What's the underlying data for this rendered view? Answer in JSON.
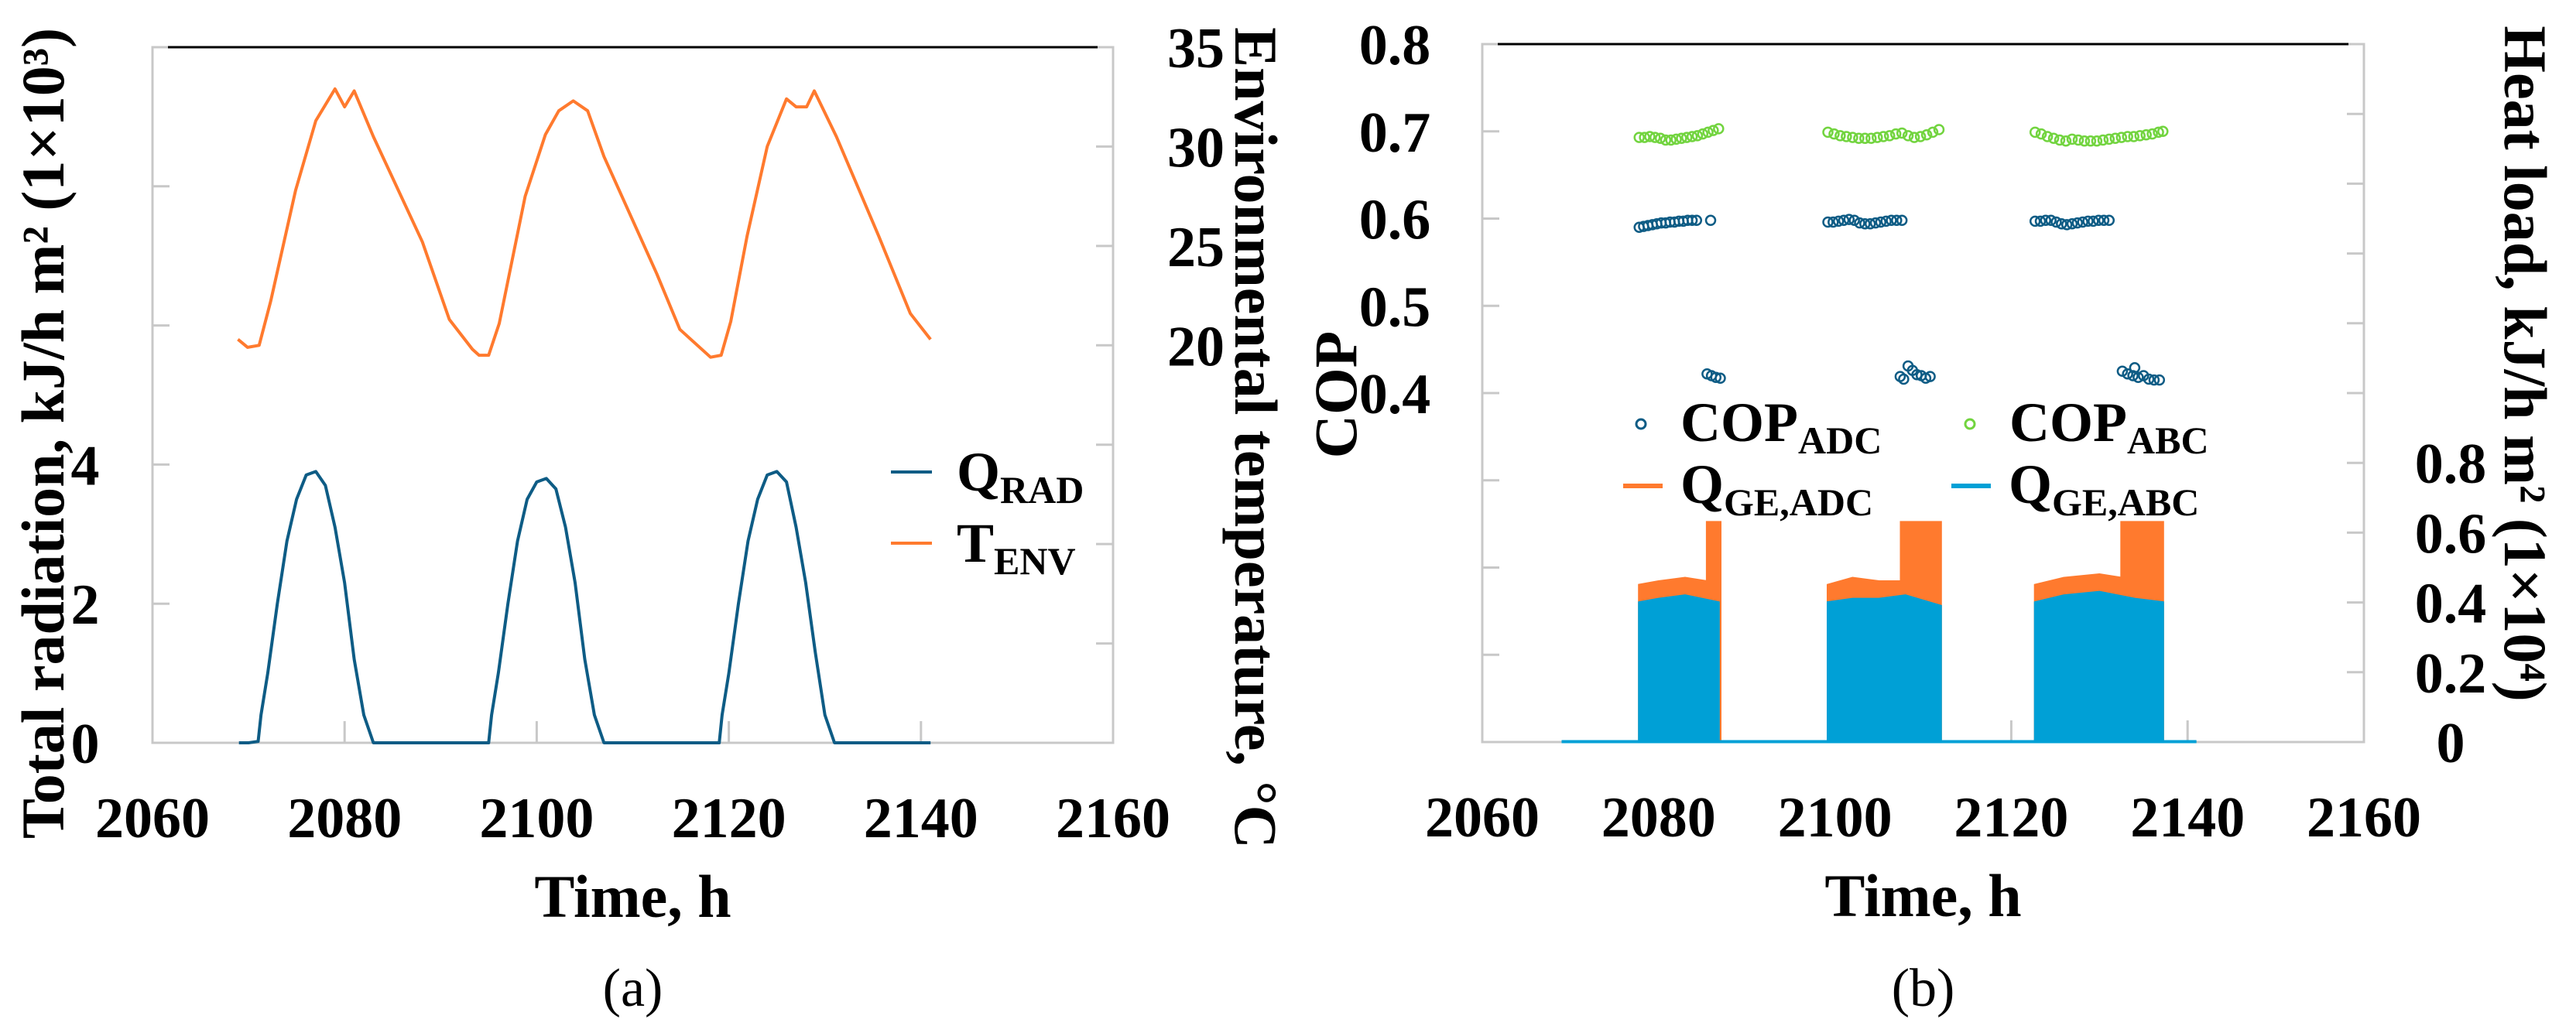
{
  "chart_data": [
    {
      "type": "line",
      "panel_label": "(a)",
      "xlabel": "Time, h",
      "ylabel": "Total radiation, kJ/h m² (1×10³)",
      "y2label": "Environmental temperature, °C",
      "xlim": [
        2060,
        2160
      ],
      "xticks": [
        "2060",
        "2080",
        "2100",
        "2120",
        "2140",
        "2160"
      ],
      "ylim": [
        0,
        10
      ],
      "yticks_labeled": [
        "0",
        "2",
        "4"
      ],
      "y2lim": [
        0,
        35
      ],
      "y2ticks_labeled": [
        "20",
        "25",
        "30",
        "35"
      ],
      "legend_position": "right-middle",
      "colors": {
        "q_rad": "#0e5c85",
        "t_env": "#ff7a2e"
      },
      "series": [
        {
          "name": "Q",
          "sub": "RAD",
          "axis": "left",
          "x": [
            2069,
            2070,
            2071,
            2071.3,
            2072,
            2073,
            2074,
            2075,
            2076,
            2077,
            2078,
            2079,
            2080,
            2081,
            2082,
            2082.5,
            2083,
            2095,
            2095.3,
            2096,
            2097,
            2098,
            2099,
            2100,
            2101,
            2102,
            2103,
            2104,
            2105,
            2106,
            2106.5,
            2107,
            2119,
            2119.3,
            2120,
            2121,
            2122,
            2123,
            2124,
            2125,
            2126,
            2127,
            2128,
            2129,
            2130,
            2130.5,
            2131,
            2141
          ],
          "y": [
            0,
            0,
            0.02,
            0.4,
            1.0,
            2.0,
            2.9,
            3.5,
            3.85,
            3.9,
            3.7,
            3.1,
            2.3,
            1.2,
            0.4,
            0.2,
            0,
            0,
            0.4,
            1.0,
            2.0,
            2.9,
            3.5,
            3.75,
            3.8,
            3.65,
            3.1,
            2.3,
            1.2,
            0.4,
            0.2,
            0,
            0,
            0.4,
            1.0,
            2.0,
            2.9,
            3.5,
            3.85,
            3.9,
            3.75,
            3.1,
            2.3,
            1.3,
            0.4,
            0.2,
            0,
            0
          ]
        },
        {
          "name": "T",
          "sub": "ENV",
          "axis": "right",
          "x": [
            2068.9,
            2069.9,
            2071.1,
            2072.3,
            2074.9,
            2077,
            2079,
            2080,
            2081,
            2083,
            2088.1,
            2090.9,
            2093.3,
            2094,
            2095,
            2096.1,
            2098.8,
            2100.9,
            2102.3,
            2103.8,
            2105.3,
            2107,
            2112.5,
            2114.9,
            2118.1,
            2119.2,
            2120.2,
            2121.9,
            2124,
            2126,
            2127,
            2128.1,
            2128.9,
            2131.2,
            2135.6,
            2138.9,
            2141
          ],
          "y": [
            20.3,
            19.9,
            20.0,
            22.2,
            27.8,
            31.3,
            32.9,
            32.0,
            32.8,
            30.5,
            25.2,
            21.3,
            19.8,
            19.5,
            19.5,
            21.1,
            27.5,
            30.6,
            31.8,
            32.3,
            31.8,
            29.5,
            23.6,
            20.8,
            19.4,
            19.5,
            21.2,
            25.5,
            30.0,
            32.4,
            32.0,
            32.0,
            32.8,
            30.5,
            25.5,
            21.6,
            20.3
          ]
        }
      ]
    },
    {
      "type": "scatter+area",
      "panel_label": "(b)",
      "xlabel": "Time, h",
      "ylabel": "COP",
      "y2label": "Heat load, kJ/h m² (1×10⁴)",
      "xlim": [
        2060,
        2160
      ],
      "xticks": [
        "2060",
        "2080",
        "2100",
        "2120",
        "2140",
        "2160"
      ],
      "ylim": [
        0,
        0.8
      ],
      "yticks_labeled": [
        "0.4",
        "0.5",
        "0.6",
        "0.7",
        "0.8"
      ],
      "y2lim": [
        0,
        2.0
      ],
      "y2ticks_labeled": [
        "0",
        "0.2",
        "0.4",
        "0.6",
        "0.8"
      ],
      "legend_position": "center",
      "colors": {
        "cop_adc": "#0e5c85",
        "cop_abc": "#72d43f",
        "q_adc": "#ff7a2e",
        "q_abc": "#00a0d6"
      },
      "series": [
        {
          "name": "COP",
          "sub": "ADC",
          "kind": "scatter",
          "axis": "left",
          "x": [
            2077.8,
            2078.3,
            2078.8,
            2079.3,
            2079.8,
            2080.3,
            2080.8,
            2081.3,
            2081.8,
            2082.3,
            2082.8,
            2083.3,
            2083.8,
            2084.3,
            2085.9,
            2085.5,
            2086.0,
            2086.5,
            2087.0,
            2099.2,
            2099.8,
            2100.4,
            2101.0,
            2101.6,
            2102.2,
            2102.8,
            2103.4,
            2104.0,
            2104.6,
            2105.2,
            2105.8,
            2106.4,
            2107.0,
            2107.6,
            2107.4,
            2107.8,
            2108.3,
            2108.8,
            2109.3,
            2109.8,
            2110.3,
            2110.8,
            2122.7,
            2123.3,
            2123.9,
            2124.5,
            2125.1,
            2125.7,
            2126.3,
            2126.9,
            2127.5,
            2128.1,
            2128.7,
            2129.3,
            2129.9,
            2130.5,
            2131.1,
            2132.6,
            2133.2,
            2133.8,
            2134.0,
            2134.4,
            2135.0,
            2135.6,
            2136.2,
            2136.8
          ],
          "y": [
            0.59,
            0.591,
            0.592,
            0.593,
            0.594,
            0.595,
            0.595,
            0.596,
            0.596,
            0.597,
            0.597,
            0.598,
            0.598,
            0.598,
            0.598,
            0.422,
            0.42,
            0.418,
            0.417,
            0.596,
            0.596,
            0.597,
            0.598,
            0.599,
            0.598,
            0.595,
            0.594,
            0.594,
            0.595,
            0.596,
            0.597,
            0.598,
            0.598,
            0.598,
            0.419,
            0.416,
            0.431,
            0.426,
            0.421,
            0.42,
            0.417,
            0.419,
            0.597,
            0.597,
            0.598,
            0.598,
            0.596,
            0.594,
            0.593,
            0.594,
            0.595,
            0.596,
            0.597,
            0.597,
            0.598,
            0.598,
            0.598,
            0.425,
            0.422,
            0.42,
            0.429,
            0.418,
            0.42,
            0.416,
            0.415,
            0.415
          ]
        },
        {
          "name": "COP",
          "sub": "ABC",
          "kind": "scatter",
          "axis": "left",
          "x": [
            2077.8,
            2078.4,
            2079.0,
            2079.6,
            2080.2,
            2080.8,
            2081.4,
            2082.0,
            2082.6,
            2083.2,
            2083.8,
            2084.4,
            2085.0,
            2085.6,
            2086.2,
            2086.8,
            2099.2,
            2099.9,
            2100.6,
            2101.3,
            2102.0,
            2102.7,
            2103.4,
            2104.1,
            2104.8,
            2105.5,
            2106.2,
            2106.9,
            2107.6,
            2108.3,
            2109.0,
            2109.7,
            2110.4,
            2111.1,
            2111.8,
            2122.7,
            2123.4,
            2124.1,
            2124.8,
            2125.5,
            2126.2,
            2126.9,
            2127.6,
            2128.3,
            2129.0,
            2129.7,
            2130.4,
            2131.1,
            2131.8,
            2132.5,
            2133.2,
            2133.9,
            2134.6,
            2135.3,
            2136.0,
            2136.7,
            2137.2
          ],
          "y": [
            0.693,
            0.693,
            0.694,
            0.693,
            0.692,
            0.69,
            0.69,
            0.691,
            0.692,
            0.693,
            0.694,
            0.695,
            0.697,
            0.699,
            0.701,
            0.703,
            0.699,
            0.697,
            0.695,
            0.694,
            0.693,
            0.692,
            0.692,
            0.692,
            0.693,
            0.694,
            0.695,
            0.697,
            0.698,
            0.695,
            0.693,
            0.694,
            0.696,
            0.699,
            0.702,
            0.699,
            0.697,
            0.694,
            0.692,
            0.69,
            0.689,
            0.691,
            0.69,
            0.689,
            0.689,
            0.689,
            0.69,
            0.691,
            0.692,
            0.693,
            0.694,
            0.694,
            0.695,
            0.696,
            0.697,
            0.699,
            0.7
          ]
        },
        {
          "name": "Q",
          "sub": "GE,ADC",
          "kind": "area",
          "axis": "right",
          "x": [
            2069,
            2077.8,
            2077.8,
            2080,
            2083,
            2085.5,
            2085.5,
            2087,
            2087,
            2099.2,
            2099.2,
            2102,
            2105,
            2107.5,
            2107.5,
            2112,
            2112,
            2122.7,
            2122.7,
            2126,
            2130,
            2132.5,
            2132.5,
            2137.2,
            2137.2,
            2141
          ],
          "y": [
            0,
            0,
            0.45,
            0.46,
            0.47,
            0.46,
            0.63,
            0.63,
            0,
            0,
            0.45,
            0.47,
            0.46,
            0.46,
            0.63,
            0.63,
            0,
            0,
            0.45,
            0.47,
            0.48,
            0.47,
            0.63,
            0.63,
            0,
            0
          ]
        },
        {
          "name": "Q",
          "sub": "GE,ABC",
          "kind": "area",
          "axis": "right",
          "x": [
            2069,
            2077.8,
            2077.8,
            2080,
            2083,
            2086.8,
            2086.8,
            2099.2,
            2099.2,
            2102,
            2105,
            2108,
            2112,
            2112,
            2122.7,
            2122.7,
            2126,
            2130,
            2134,
            2137.2,
            2137.2,
            2141
          ],
          "y": [
            0,
            0,
            0.4,
            0.41,
            0.42,
            0.4,
            0,
            0,
            0.4,
            0.41,
            0.41,
            0.42,
            0.39,
            0,
            0,
            0.4,
            0.42,
            0.43,
            0.41,
            0.4,
            0,
            0
          ]
        }
      ]
    }
  ]
}
